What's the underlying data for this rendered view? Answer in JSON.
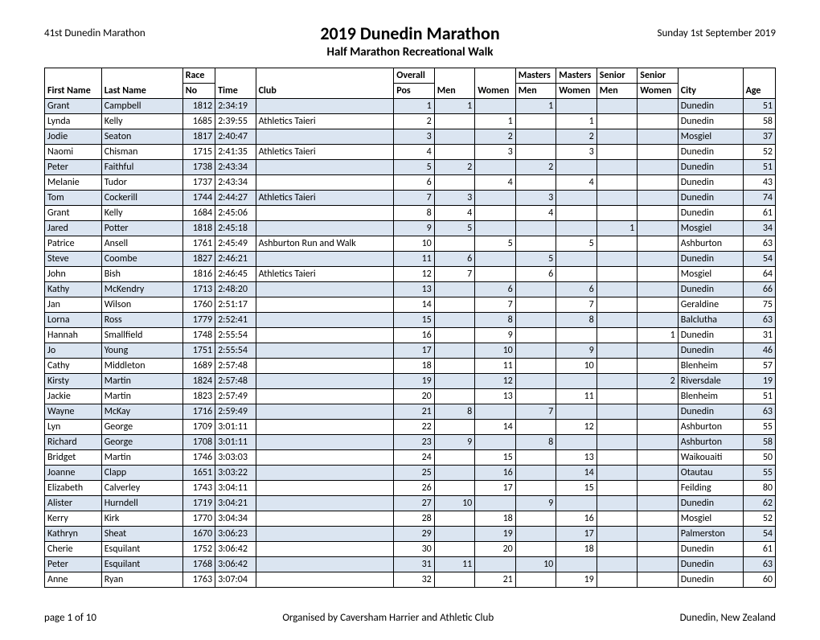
{
  "header": {
    "event_label": "41st Dunedin Marathon",
    "title": "2019 Dunedin Marathon",
    "subtitle": "Half Marathon Recreational Walk",
    "date": "Sunday 1st September 2019"
  },
  "footer": {
    "page": "page 1 of 10",
    "organiser": "Organised by Caversham Harrier and Athletic Club",
    "location": "Dunedin, New Zealand"
  },
  "columns": {
    "first_name": "First Name",
    "last_name": "Last Name",
    "race_top": "Race",
    "race_no": "No",
    "time": "Time",
    "club": "Club",
    "overall_top": "Overall",
    "overall_pos": "Pos",
    "men": "Men",
    "women": "Women",
    "masters_top": "Masters",
    "masters_men": "Men",
    "masters_women": "Women",
    "senior_top": "Senior",
    "senior_men": "Men",
    "senior_women": "Women",
    "city": "City",
    "age": "Age"
  },
  "table": {
    "row_colors": {
      "odd": "#dbe5f1",
      "even": "#ffffff"
    },
    "border_color": "#000000",
    "font_size_pt": 9
  },
  "rows": [
    {
      "first": "Grant",
      "last": "Campbell",
      "no": "1812",
      "time": "2:34:19",
      "club": "",
      "pos": "1",
      "men": "1",
      "women": "",
      "mmen": "1",
      "mwomen": "",
      "smen": "",
      "swomen": "",
      "city": "Dunedin",
      "age": "51"
    },
    {
      "first": "Lynda",
      "last": "Kelly",
      "no": "1685",
      "time": "2:39:55",
      "club": "Athletics Taieri",
      "pos": "2",
      "men": "",
      "women": "1",
      "mmen": "",
      "mwomen": "1",
      "smen": "",
      "swomen": "",
      "city": "Dunedin",
      "age": "58"
    },
    {
      "first": "Jodie",
      "last": "Seaton",
      "no": "1817",
      "time": "2:40:47",
      "club": "",
      "pos": "3",
      "men": "",
      "women": "2",
      "mmen": "",
      "mwomen": "2",
      "smen": "",
      "swomen": "",
      "city": "Mosgiel",
      "age": "37"
    },
    {
      "first": "Naomi",
      "last": "Chisman",
      "no": "1715",
      "time": "2:41:35",
      "club": "Athletics Taieri",
      "pos": "4",
      "men": "",
      "women": "3",
      "mmen": "",
      "mwomen": "3",
      "smen": "",
      "swomen": "",
      "city": "Dunedin",
      "age": "52"
    },
    {
      "first": "Peter",
      "last": "Faithful",
      "no": "1738",
      "time": "2:43:34",
      "club": "",
      "pos": "5",
      "men": "2",
      "women": "",
      "mmen": "2",
      "mwomen": "",
      "smen": "",
      "swomen": "",
      "city": "Dunedin",
      "age": "51"
    },
    {
      "first": "Melanie",
      "last": "Tudor",
      "no": "1737",
      "time": "2:43:34",
      "club": "",
      "pos": "6",
      "men": "",
      "women": "4",
      "mmen": "",
      "mwomen": "4",
      "smen": "",
      "swomen": "",
      "city": "Dunedin",
      "age": "43"
    },
    {
      "first": "Tom",
      "last": "Cockerill",
      "no": "1744",
      "time": "2:44:27",
      "club": "Athletics Taieri",
      "pos": "7",
      "men": "3",
      "women": "",
      "mmen": "3",
      "mwomen": "",
      "smen": "",
      "swomen": "",
      "city": "Dunedin",
      "age": "74"
    },
    {
      "first": "Grant",
      "last": "Kelly",
      "no": "1684",
      "time": "2:45:06",
      "club": "",
      "pos": "8",
      "men": "4",
      "women": "",
      "mmen": "4",
      "mwomen": "",
      "smen": "",
      "swomen": "",
      "city": "Dunedin",
      "age": "61"
    },
    {
      "first": "Jared",
      "last": "Potter",
      "no": "1818",
      "time": "2:45:18",
      "club": "",
      "pos": "9",
      "men": "5",
      "women": "",
      "mmen": "",
      "mwomen": "",
      "smen": "1",
      "swomen": "",
      "city": "Mosgiel",
      "age": "34"
    },
    {
      "first": "Patrice",
      "last": "Ansell",
      "no": "1761",
      "time": "2:45:49",
      "club": "Ashburton Run and Walk",
      "pos": "10",
      "men": "",
      "women": "5",
      "mmen": "",
      "mwomen": "5",
      "smen": "",
      "swomen": "",
      "city": "Ashburton",
      "age": "63"
    },
    {
      "first": "Steve",
      "last": "Coombe",
      "no": "1827",
      "time": "2:46:21",
      "club": "",
      "pos": "11",
      "men": "6",
      "women": "",
      "mmen": "5",
      "mwomen": "",
      "smen": "",
      "swomen": "",
      "city": "Dunedin",
      "age": "54"
    },
    {
      "first": "John",
      "last": "Bish",
      "no": "1816",
      "time": "2:46:45",
      "club": "Athletics Taieri",
      "pos": "12",
      "men": "7",
      "women": "",
      "mmen": "6",
      "mwomen": "",
      "smen": "",
      "swomen": "",
      "city": "Mosgiel",
      "age": "64"
    },
    {
      "first": "Kathy",
      "last": "McKendry",
      "no": "1713",
      "time": "2:48:20",
      "club": "",
      "pos": "13",
      "men": "",
      "women": "6",
      "mmen": "",
      "mwomen": "6",
      "smen": "",
      "swomen": "",
      "city": "Dunedin",
      "age": "66"
    },
    {
      "first": "Jan",
      "last": "Wilson",
      "no": "1760",
      "time": "2:51:17",
      "club": "",
      "pos": "14",
      "men": "",
      "women": "7",
      "mmen": "",
      "mwomen": "7",
      "smen": "",
      "swomen": "",
      "city": "Geraldine",
      "age": "75"
    },
    {
      "first": "Lorna",
      "last": "Ross",
      "no": "1779",
      "time": "2:52:41",
      "club": "",
      "pos": "15",
      "men": "",
      "women": "8",
      "mmen": "",
      "mwomen": "8",
      "smen": "",
      "swomen": "",
      "city": "Balclutha",
      "age": "63"
    },
    {
      "first": "Hannah",
      "last": "Smallfield",
      "no": "1748",
      "time": "2:55:54",
      "club": "",
      "pos": "16",
      "men": "",
      "women": "9",
      "mmen": "",
      "mwomen": "",
      "smen": "",
      "swomen": "1",
      "city": "Dunedin",
      "age": "31"
    },
    {
      "first": "Jo",
      "last": "Young",
      "no": "1751",
      "time": "2:55:54",
      "club": "",
      "pos": "17",
      "men": "",
      "women": "10",
      "mmen": "",
      "mwomen": "9",
      "smen": "",
      "swomen": "",
      "city": "Dunedin",
      "age": "46"
    },
    {
      "first": "Cathy",
      "last": "Middleton",
      "no": "1689",
      "time": "2:57:48",
      "club": "",
      "pos": "18",
      "men": "",
      "women": "11",
      "mmen": "",
      "mwomen": "10",
      "smen": "",
      "swomen": "",
      "city": "Blenheim",
      "age": "57"
    },
    {
      "first": "Kirsty",
      "last": "Martin",
      "no": "1824",
      "time": "2:57:48",
      "club": "",
      "pos": "19",
      "men": "",
      "women": "12",
      "mmen": "",
      "mwomen": "",
      "smen": "",
      "swomen": "2",
      "city": "Riversdale",
      "age": "19"
    },
    {
      "first": "Jackie",
      "last": "Martin",
      "no": "1823",
      "time": "2:57:49",
      "club": "",
      "pos": "20",
      "men": "",
      "women": "13",
      "mmen": "",
      "mwomen": "11",
      "smen": "",
      "swomen": "",
      "city": "Blenheim",
      "age": "51"
    },
    {
      "first": "Wayne",
      "last": "McKay",
      "no": "1716",
      "time": "2:59:49",
      "club": "",
      "pos": "21",
      "men": "8",
      "women": "",
      "mmen": "7",
      "mwomen": "",
      "smen": "",
      "swomen": "",
      "city": "Dunedin",
      "age": "63"
    },
    {
      "first": "Lyn",
      "last": "George",
      "no": "1709",
      "time": "3:01:11",
      "club": "",
      "pos": "22",
      "men": "",
      "women": "14",
      "mmen": "",
      "mwomen": "12",
      "smen": "",
      "swomen": "",
      "city": "Ashburton",
      "age": "55"
    },
    {
      "first": "Richard",
      "last": "George",
      "no": "1708",
      "time": "3:01:11",
      "club": "",
      "pos": "23",
      "men": "9",
      "women": "",
      "mmen": "8",
      "mwomen": "",
      "smen": "",
      "swomen": "",
      "city": "Ashburton",
      "age": "58"
    },
    {
      "first": "Bridget",
      "last": "Martin",
      "no": "1746",
      "time": "3:03:03",
      "club": "",
      "pos": "24",
      "men": "",
      "women": "15",
      "mmen": "",
      "mwomen": "13",
      "smen": "",
      "swomen": "",
      "city": "Waikouaiti",
      "age": "50"
    },
    {
      "first": "Joanne",
      "last": "Clapp",
      "no": "1651",
      "time": "3:03:22",
      "club": "",
      "pos": "25",
      "men": "",
      "women": "16",
      "mmen": "",
      "mwomen": "14",
      "smen": "",
      "swomen": "",
      "city": "Otautau",
      "age": "55"
    },
    {
      "first": "Elizabeth",
      "last": "Calverley",
      "no": "1743",
      "time": "3:04:11",
      "club": "",
      "pos": "26",
      "men": "",
      "women": "17",
      "mmen": "",
      "mwomen": "15",
      "smen": "",
      "swomen": "",
      "city": "Feilding",
      "age": "80"
    },
    {
      "first": "Alister",
      "last": "Hurndell",
      "no": "1719",
      "time": "3:04:21",
      "club": "",
      "pos": "27",
      "men": "10",
      "women": "",
      "mmen": "9",
      "mwomen": "",
      "smen": "",
      "swomen": "",
      "city": "Dunedin",
      "age": "62"
    },
    {
      "first": "Kerry",
      "last": "Kirk",
      "no": "1770",
      "time": "3:04:34",
      "club": "",
      "pos": "28",
      "men": "",
      "women": "18",
      "mmen": "",
      "mwomen": "16",
      "smen": "",
      "swomen": "",
      "city": "Mosgiel",
      "age": "52"
    },
    {
      "first": "Kathryn",
      "last": "Sheat",
      "no": "1670",
      "time": "3:06:23",
      "club": "",
      "pos": "29",
      "men": "",
      "women": "19",
      "mmen": "",
      "mwomen": "17",
      "smen": "",
      "swomen": "",
      "city": "Palmerston",
      "age": "54"
    },
    {
      "first": "Cherie",
      "last": "Esquilant",
      "no": "1752",
      "time": "3:06:42",
      "club": "",
      "pos": "30",
      "men": "",
      "women": "20",
      "mmen": "",
      "mwomen": "18",
      "smen": "",
      "swomen": "",
      "city": "Dunedin",
      "age": "61"
    },
    {
      "first": "Peter",
      "last": "Esquilant",
      "no": "1768",
      "time": "3:06:42",
      "club": "",
      "pos": "31",
      "men": "11",
      "women": "",
      "mmen": "10",
      "mwomen": "",
      "smen": "",
      "swomen": "",
      "city": "Dunedin",
      "age": "63"
    },
    {
      "first": "Anne",
      "last": "Ryan",
      "no": "1763",
      "time": "3:07:04",
      "club": "",
      "pos": "32",
      "men": "",
      "women": "21",
      "mmen": "",
      "mwomen": "19",
      "smen": "",
      "swomen": "",
      "city": "Dunedin",
      "age": "60"
    }
  ]
}
